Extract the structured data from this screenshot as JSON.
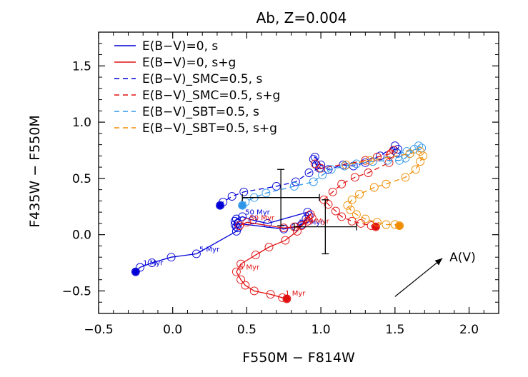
{
  "chart_data": {
    "type": "line",
    "title": "Ab, Z=0.004",
    "xlabel": "F550M − F814W",
    "ylabel": "F435W − F550M",
    "xlim": [
      -0.5,
      2.2
    ],
    "ylim": [
      -0.7,
      1.8
    ],
    "xticks": [
      -0.5,
      0.0,
      0.5,
      1.0,
      1.5,
      2.0
    ],
    "xtick_labels": [
      "−0.5",
      "0.0",
      "0.5",
      "1.0",
      "1.5",
      "2.0"
    ],
    "yticks": [
      -0.5,
      0.0,
      0.5,
      1.0,
      1.5
    ],
    "ytick_labels": [
      "−0.5",
      "0.0",
      "0.5",
      "1.0",
      "1.5"
    ],
    "grid": false,
    "legend_position": "top-left",
    "series": [
      {
        "name": "E(B−V)=0, s",
        "color": "#0000d6",
        "dash": "solid",
        "points": [
          [
            -0.25,
            -0.33
          ],
          [
            -0.22,
            -0.29
          ],
          [
            -0.14,
            -0.25
          ],
          [
            -0.01,
            -0.2
          ],
          [
            0.16,
            -0.17
          ],
          [
            0.43,
            0.03
          ],
          [
            0.44,
            0.06
          ],
          [
            0.42,
            0.09
          ],
          [
            0.42,
            0.12
          ],
          [
            0.43,
            0.14
          ],
          [
            0.47,
            0.16
          ],
          [
            0.54,
            0.13
          ],
          [
            0.64,
            0.1
          ],
          [
            0.91,
            0.2
          ],
          [
            0.92,
            0.17
          ],
          [
            0.9,
            0.14
          ],
          [
            0.87,
            0.09
          ],
          [
            0.83,
            0.07
          ],
          [
            0.75,
            0.05
          ],
          [
            0.44,
            0.1
          ],
          [
            0.43,
            0.07
          ]
        ],
        "labels": [
          {
            "text": "1 Myr",
            "index": 1
          },
          {
            "text": "5 Myr",
            "index": 4
          },
          {
            "text": "50 Myr",
            "index": 10
          },
          {
            "text": "10 Myr",
            "index": 17
          }
        ]
      },
      {
        "name": "E(B−V)=0, s+g",
        "color": "#e01010",
        "dash": "solid",
        "points": [
          [
            0.77,
            -0.57
          ],
          [
            0.74,
            -0.56
          ],
          [
            0.66,
            -0.53
          ],
          [
            0.55,
            -0.5
          ],
          [
            0.49,
            -0.45
          ],
          [
            0.46,
            -0.4
          ],
          [
            0.43,
            -0.33
          ],
          [
            0.46,
            -0.26
          ],
          [
            0.56,
            -0.18
          ],
          [
            0.65,
            -0.11
          ],
          [
            0.76,
            -0.05
          ],
          [
            0.84,
            0.03
          ],
          [
            0.93,
            0.18
          ],
          [
            0.94,
            0.15
          ],
          [
            0.91,
            0.12
          ],
          [
            0.87,
            0.08
          ],
          [
            0.82,
            0.07
          ],
          [
            0.75,
            0.06
          ],
          [
            0.5,
            0.11
          ],
          [
            0.45,
            0.08
          ]
        ],
        "labels": [
          {
            "text": "1 Myr",
            "index": 1
          },
          {
            "text": "5 Myr",
            "index": 6
          },
          {
            "text": "50 Myr",
            "index": 18
          },
          {
            "text": "10 Myr",
            "index": 15
          }
        ]
      },
      {
        "name": "E(B−V)_SMC=0.5, s",
        "color": "#0000d6",
        "dash": "dashed",
        "points": [
          [
            0.32,
            0.26
          ],
          [
            0.34,
            0.29
          ],
          [
            0.4,
            0.34
          ],
          [
            0.48,
            0.38
          ],
          [
            0.7,
            0.43
          ],
          [
            0.83,
            0.47
          ],
          [
            0.92,
            0.55
          ],
          [
            0.99,
            0.59
          ],
          [
            0.97,
            0.62
          ],
          [
            0.95,
            0.67
          ],
          [
            0.96,
            0.69
          ],
          [
            1.0,
            0.62
          ],
          [
            1.05,
            0.58
          ],
          [
            1.15,
            0.62
          ],
          [
            1.22,
            0.61
          ],
          [
            1.3,
            0.64
          ],
          [
            1.4,
            0.7
          ],
          [
            1.5,
            0.79
          ],
          [
            1.52,
            0.76
          ],
          [
            1.51,
            0.73
          ]
        ]
      },
      {
        "name": "E(B−V)_SMC=0.5, s+g",
        "color": "#e01010",
        "dash": "dashed",
        "points": [
          [
            1.37,
            0.07
          ],
          [
            1.34,
            0.08
          ],
          [
            1.27,
            0.1
          ],
          [
            1.21,
            0.12
          ],
          [
            1.14,
            0.16
          ],
          [
            1.1,
            0.21
          ],
          [
            1.05,
            0.27
          ],
          [
            1.02,
            0.31
          ],
          [
            1.08,
            0.38
          ],
          [
            1.14,
            0.45
          ],
          [
            1.23,
            0.51
          ],
          [
            1.32,
            0.55
          ],
          [
            1.46,
            0.64
          ],
          [
            1.47,
            0.71
          ],
          [
            1.49,
            0.75
          ],
          [
            1.47,
            0.72
          ],
          [
            1.38,
            0.69
          ],
          [
            1.3,
            0.66
          ],
          [
            1.0,
            0.59
          ],
          [
            0.96,
            0.63
          ]
        ]
      },
      {
        "name": "E(B−V)_SBT=0.5, s",
        "color": "#2e95e8",
        "dash": "dashed",
        "points": [
          [
            0.47,
            0.26
          ],
          [
            0.49,
            0.29
          ],
          [
            0.55,
            0.33
          ],
          [
            0.63,
            0.37
          ],
          [
            0.82,
            0.43
          ],
          [
            0.95,
            0.47
          ],
          [
            1.01,
            0.53
          ],
          [
            1.07,
            0.58
          ],
          [
            1.16,
            0.61
          ],
          [
            1.24,
            0.63
          ],
          [
            1.35,
            0.65
          ],
          [
            1.45,
            0.66
          ],
          [
            1.53,
            0.66
          ],
          [
            1.57,
            0.68
          ],
          [
            1.6,
            0.72
          ],
          [
            1.63,
            0.76
          ],
          [
            1.66,
            0.79
          ],
          [
            1.68,
            0.77
          ],
          [
            1.58,
            0.74
          ],
          [
            1.52,
            0.72
          ]
        ]
      },
      {
        "name": "E(B−V)_SBT=0.5, s+g",
        "color": "#f08c00",
        "dash": "dashed",
        "points": [
          [
            1.53,
            0.08
          ],
          [
            1.5,
            0.09
          ],
          [
            1.44,
            0.09
          ],
          [
            1.38,
            0.11
          ],
          [
            1.3,
            0.14
          ],
          [
            1.24,
            0.18
          ],
          [
            1.2,
            0.22
          ],
          [
            1.18,
            0.26
          ],
          [
            1.21,
            0.31
          ],
          [
            1.26,
            0.36
          ],
          [
            1.36,
            0.42
          ],
          [
            1.44,
            0.45
          ],
          [
            1.57,
            0.51
          ],
          [
            1.64,
            0.58
          ],
          [
            1.67,
            0.65
          ],
          [
            1.69,
            0.7
          ],
          [
            1.67,
            0.74
          ],
          [
            1.6,
            0.72
          ],
          [
            1.33,
            0.66
          ],
          [
            1.17,
            0.62
          ]
        ]
      }
    ],
    "error_bars": [
      {
        "x": 0.73,
        "y": 0.33,
        "xerr": 0.26,
        "yerr": 0.25
      },
      {
        "x": 1.03,
        "y": 0.07,
        "xerr": 0.21,
        "yerr": 0.24
      }
    ],
    "reddening_vector": {
      "label": "A(V)",
      "from": [
        1.5,
        -0.55
      ],
      "to": [
        1.82,
        -0.21
      ]
    }
  }
}
